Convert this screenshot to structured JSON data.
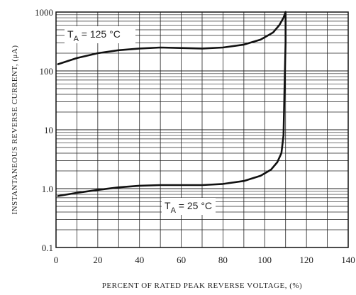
{
  "chart_data": {
    "type": "line",
    "title": "",
    "xlabel": "PERCENT OF RATED PEAK REVERSE VOLTAGE, (%)",
    "ylabel": "INSTANTANEOUS REVERSE CURRENT, (μA)",
    "xlim": [
      0,
      140
    ],
    "ylim": [
      0.1,
      1000
    ],
    "yscale": "log",
    "grid": true,
    "x_ticks": [
      "0",
      "20",
      "40",
      "60",
      "80",
      "100",
      "120",
      "140"
    ],
    "y_ticks": [
      "0.1",
      "1.0",
      "10",
      "100",
      "1000"
    ],
    "series": [
      {
        "name": "TA = 125 °C",
        "label_sub": "A",
        "label_rest": " = 125 °C",
        "x": [
          1,
          10,
          20,
          30,
          40,
          50,
          60,
          70,
          80,
          90,
          98,
          104,
          107,
          109,
          110
        ],
        "y": [
          130,
          165,
          200,
          225,
          240,
          250,
          245,
          240,
          250,
          280,
          340,
          450,
          600,
          800,
          1000
        ]
      },
      {
        "name": "TA = 25 °C",
        "label_sub": "A",
        "label_rest": " = 25 °C",
        "x": [
          1,
          10,
          20,
          30,
          40,
          50,
          60,
          70,
          80,
          90,
          98,
          103,
          106,
          108,
          109,
          109.5,
          110,
          110
        ],
        "y": [
          0.75,
          0.85,
          0.95,
          1.05,
          1.12,
          1.15,
          1.15,
          1.15,
          1.2,
          1.35,
          1.65,
          2.1,
          2.8,
          4.0,
          8,
          50,
          300,
          1000
        ]
      }
    ]
  }
}
